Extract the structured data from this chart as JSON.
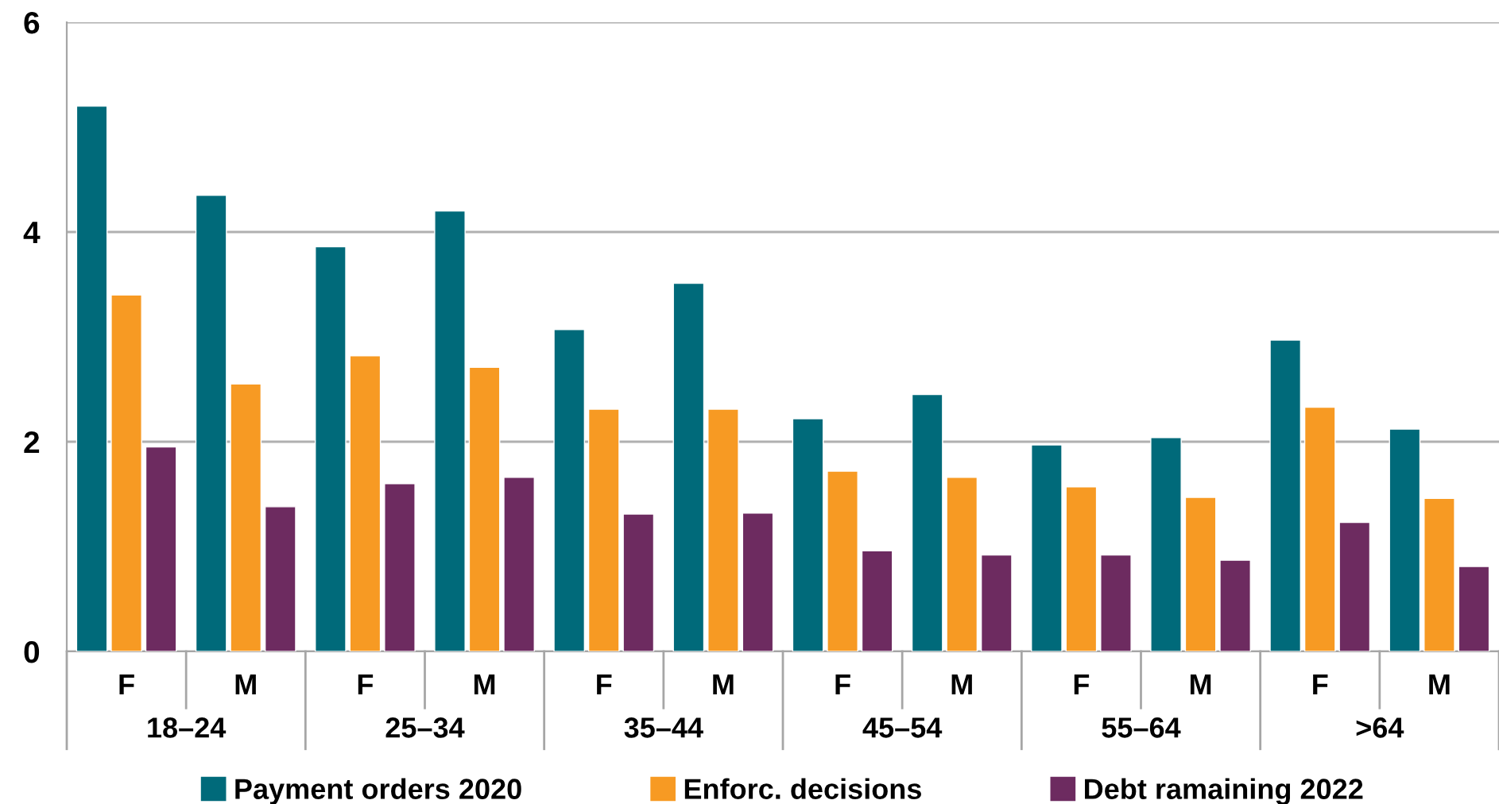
{
  "chart_data": {
    "type": "bar",
    "categories": [
      "F",
      "M",
      "F",
      "M",
      "F",
      "M",
      "F",
      "M",
      "F",
      "M",
      "F",
      "M"
    ],
    "annotations": [
      "18–24",
      "25–34",
      "35–44",
      "45–54",
      "55–64",
      ">64"
    ],
    "series": [
      {
        "name": "Payment orders 2020",
        "color": "#006a7a",
        "values": [
          5.2,
          4.35,
          3.86,
          4.2,
          3.07,
          3.51,
          2.22,
          2.45,
          1.97,
          2.04,
          2.97,
          2.12
        ]
      },
      {
        "name": "Enforc. decisions",
        "color": "#f79a23",
        "values": [
          3.4,
          2.55,
          2.82,
          2.71,
          2.31,
          2.31,
          1.72,
          1.66,
          1.57,
          1.47,
          2.33,
          1.46
        ]
      },
      {
        "name": "Debt ramaining 2022",
        "color": "#6d2b60",
        "values": [
          1.95,
          1.38,
          1.6,
          1.66,
          1.31,
          1.32,
          0.96,
          0.92,
          0.92,
          0.87,
          1.23,
          0.81
        ]
      }
    ],
    "ylim": [
      0,
      6
    ],
    "yticks": [
      0,
      2,
      4,
      6
    ],
    "grid": "y",
    "legend": "bottom"
  }
}
